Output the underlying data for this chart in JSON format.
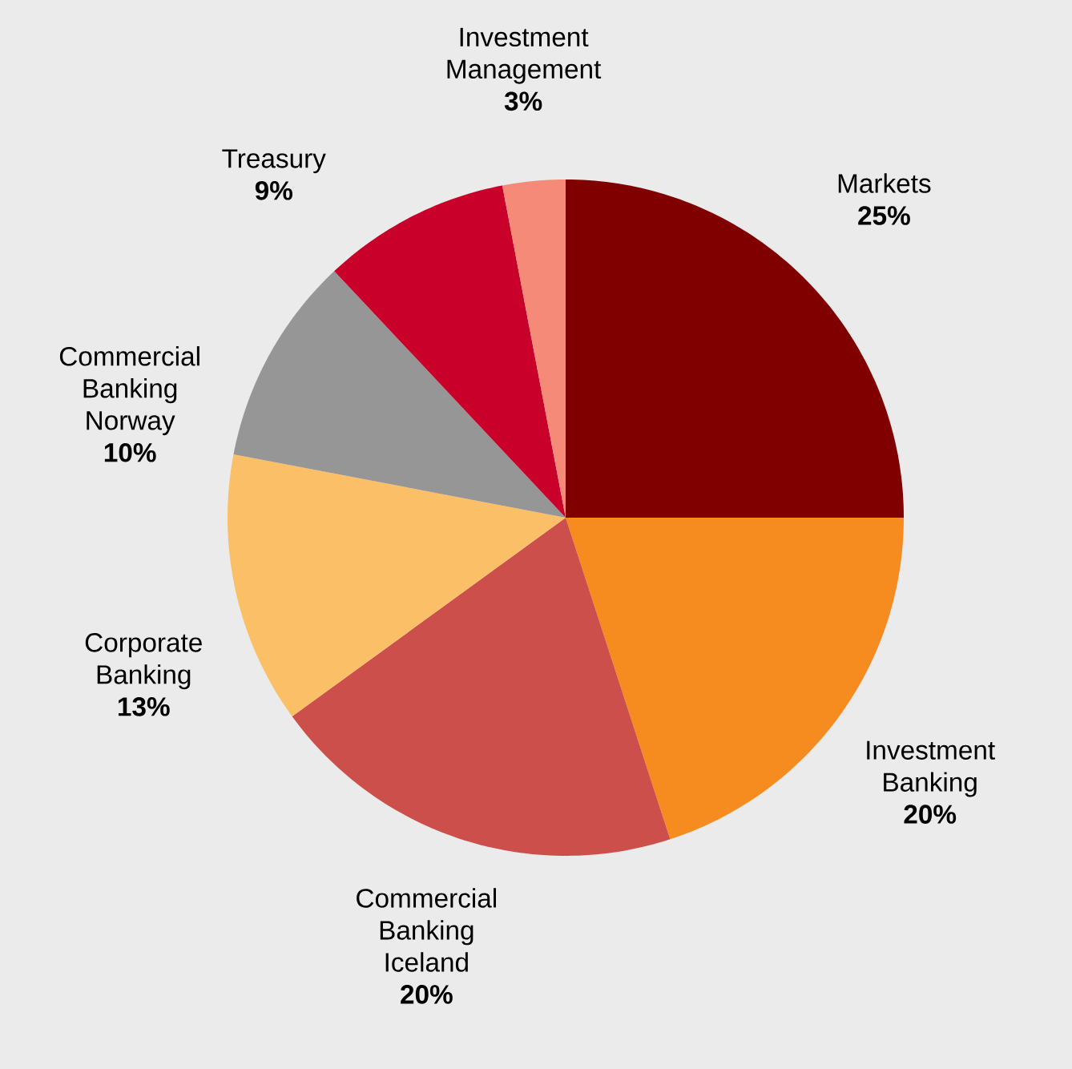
{
  "chart_data": {
    "type": "pie",
    "categories": [
      "Markets",
      "Investment Banking",
      "Commercial Banking Iceland",
      "Corporate Banking",
      "Commercial Banking Norway",
      "Treasury",
      "Investment Management"
    ],
    "values": [
      25,
      20,
      20,
      13,
      10,
      9,
      3
    ],
    "value_labels": [
      "25%",
      "20%",
      "20%",
      "13%",
      "10%",
      "9%",
      "3%"
    ],
    "colors": [
      "#800000",
      "#f68b1f",
      "#cd4f4b",
      "#fbbf67",
      "#969696",
      "#c8002a",
      "#f58a78"
    ]
  }
}
